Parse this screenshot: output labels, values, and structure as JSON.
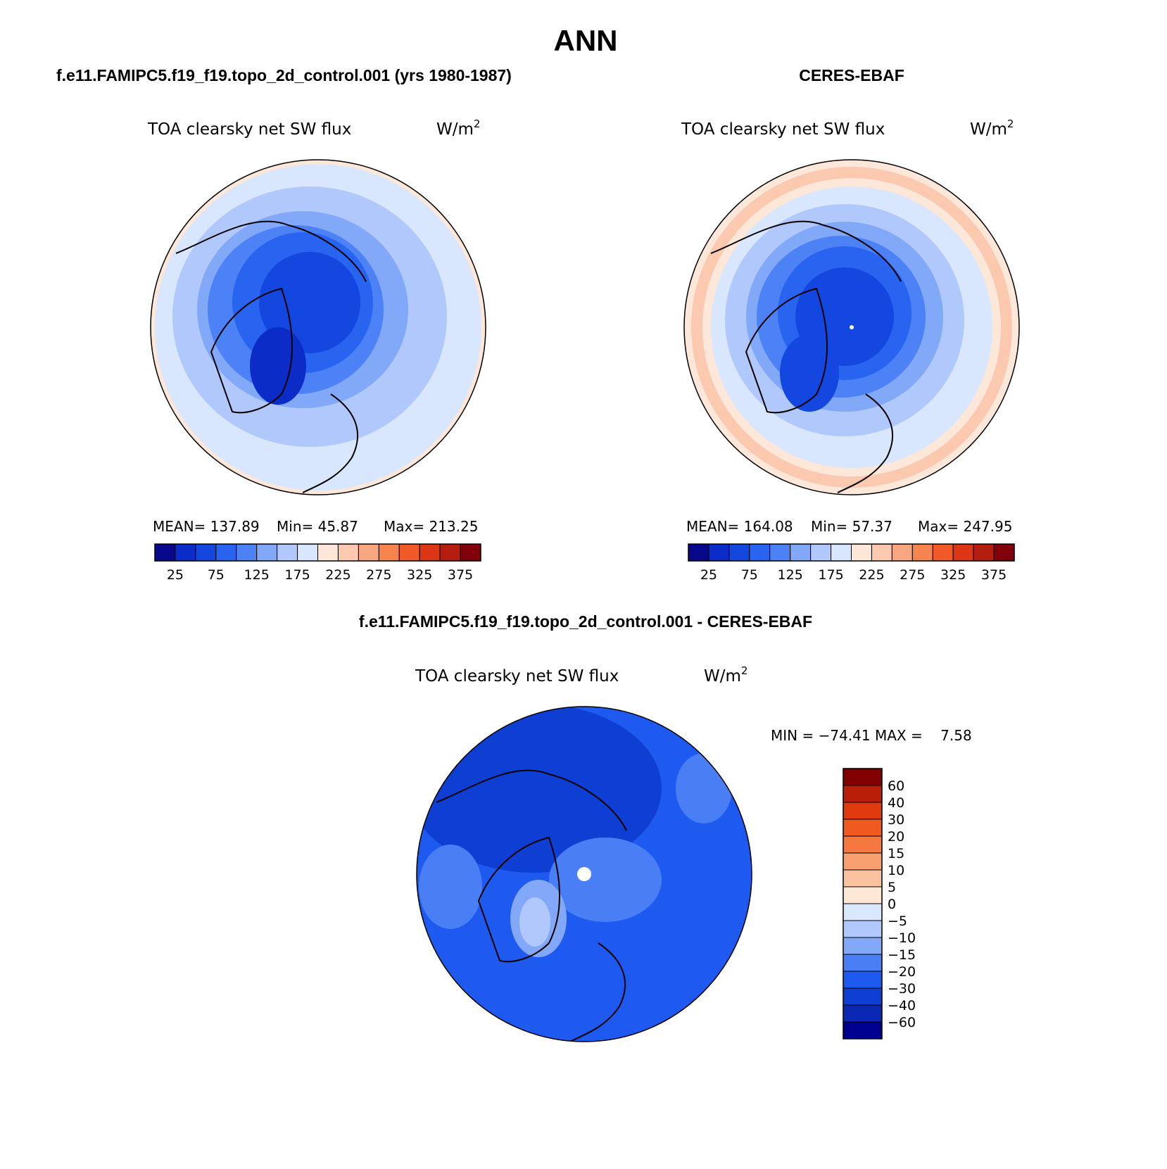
{
  "figure": {
    "main_title": "ANN"
  },
  "colors": {
    "abs_scale": [
      "#08088c",
      "#0c2cc8",
      "#1446e0",
      "#2864f0",
      "#4c82f5",
      "#82a8f8",
      "#b0c8fb",
      "#d8e7fd",
      "#fde7d8",
      "#fbc8b0",
      "#f8a682",
      "#f5844f",
      "#f05a26",
      "#dc3614",
      "#b41e10",
      "#82000a"
    ],
    "diff_scale": [
      "#000090",
      "#0a28b4",
      "#0f3ed2",
      "#1e5af0",
      "#4a7ef5",
      "#84a8f8",
      "#b0c8fb",
      "#d8e8fd",
      "#fde8d8",
      "#fbc2a0",
      "#f8a070",
      "#f57840",
      "#f05a20",
      "#e03a10",
      "#b81e08",
      "#820000"
    ]
  },
  "chart_data": [
    {
      "type": "heatmap",
      "panel_title": "f.e11.FAMIPC5.f19_f19.topo_2d_control.001 (yrs 1980-1987)",
      "variable": "TOA clearsky net SW flux",
      "units": "W/m",
      "units_sup": "2",
      "projection": "north-polar-stereographic",
      "stats": {
        "mean_label": "MEAN=",
        "mean": "137.89",
        "min_label": "Min=",
        "min": "45.87",
        "max_label": "Max=",
        "max": "213.25"
      },
      "levels": [
        25,
        50,
        75,
        100,
        125,
        150,
        175,
        200,
        225,
        250,
        275,
        300,
        325,
        350,
        375
      ],
      "tick_labels": [
        "25",
        "75",
        "125",
        "175",
        "225",
        "275",
        "325",
        "375"
      ],
      "colorbar_orientation": "horizontal"
    },
    {
      "type": "heatmap",
      "panel_title": "CERES-EBAF",
      "variable": "TOA clearsky net SW flux",
      "units": "W/m",
      "units_sup": "2",
      "projection": "north-polar-stereographic",
      "stats": {
        "mean_label": "MEAN=",
        "mean": "164.08",
        "min_label": "Min=",
        "min": "57.37",
        "max_label": "Max=",
        "max": "247.95"
      },
      "levels": [
        25,
        50,
        75,
        100,
        125,
        150,
        175,
        200,
        225,
        250,
        275,
        300,
        325,
        350,
        375
      ],
      "tick_labels": [
        "25",
        "75",
        "125",
        "175",
        "225",
        "275",
        "325",
        "375"
      ],
      "colorbar_orientation": "horizontal"
    },
    {
      "type": "heatmap",
      "panel_title": "f.e11.FAMIPC5.f19_f19.topo_2d_control.001 - CERES-EBAF",
      "variable": "TOA clearsky net SW flux",
      "units": "W/m",
      "units_sup": "2",
      "projection": "north-polar-stereographic",
      "stats_text": "MIN = −74.41 MAX =    7.58",
      "levels": [
        60,
        40,
        30,
        20,
        15,
        10,
        5,
        0,
        -5,
        -10,
        -15,
        -20,
        -30,
        -40,
        -60
      ],
      "tick_labels": [
        "60",
        "40",
        "30",
        "20",
        "15",
        "10",
        "5",
        "0",
        "−5",
        "−10",
        "−15",
        "−20",
        "−30",
        "−40",
        "−60"
      ],
      "colorbar_orientation": "vertical"
    }
  ]
}
